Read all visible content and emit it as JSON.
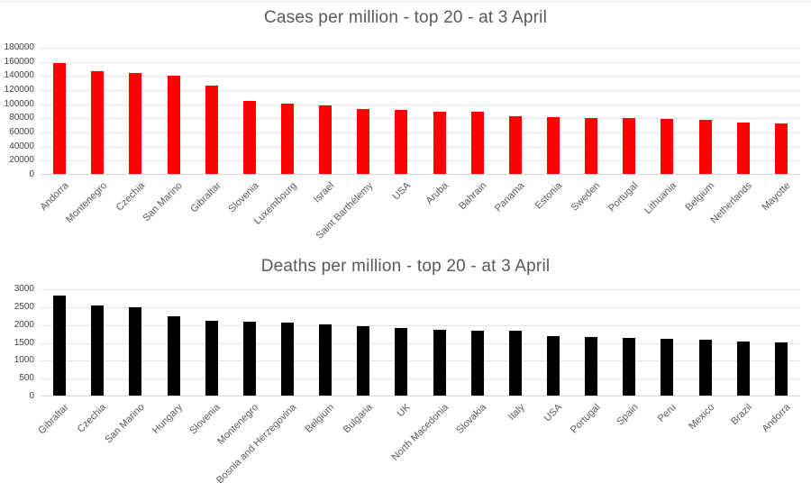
{
  "colors": {
    "cases_bar": "#ff0000",
    "deaths_bar": "#000000",
    "title_text": "#595959",
    "axis_text": "#404040",
    "gridline": "#e4e4e4"
  },
  "chart_data": [
    {
      "type": "bar",
      "title": "Cases per million - top 20 - at 3 April",
      "categories": [
        "Andorra",
        "Montenegro",
        "Czechia",
        "San Marino",
        "Gibraltar",
        "Slovenia",
        "Luxembourg",
        "Israel",
        "Saint Barthélemy",
        "USA",
        "Aruba",
        "Bahrain",
        "Panama",
        "Estonia",
        "Sweden",
        "Portugal",
        "Lithuania",
        "Belgium",
        "Netherlands",
        "Mayotte"
      ],
      "values": [
        156500,
        145500,
        143000,
        139000,
        125500,
        104000,
        99500,
        97300,
        91700,
        90400,
        88400,
        88200,
        82000,
        80700,
        79000,
        78800,
        78500,
        77000,
        73400,
        71600
      ],
      "bar_color": "#ff0000",
      "xlabel": "",
      "ylabel": "",
      "ylim": [
        0,
        180000
      ],
      "ytick_step": 20000,
      "yticks": [
        0,
        20000,
        40000,
        60000,
        80000,
        100000,
        120000,
        140000,
        160000,
        180000
      ],
      "grid": true,
      "legend": false
    },
    {
      "type": "bar",
      "title": "Deaths per million - top 20 - at 3 April",
      "categories": [
        "Gibraltar",
        "Czechia",
        "San Marino",
        "Hungary",
        "Slovenia",
        "Montenegro",
        "Bosnia and Herzegovina",
        "Belgium",
        "Bulgaria",
        "UK",
        "North Macedonia",
        "Slovakia",
        "Italy",
        "USA",
        "Portugal",
        "Spain",
        "Peru",
        "Mexico",
        "Brazil",
        "Andorra"
      ],
      "values": [
        2790,
        2510,
        2465,
        2210,
        2090,
        2070,
        2050,
        1985,
        1940,
        1880,
        1840,
        1822,
        1820,
        1655,
        1640,
        1602,
        1595,
        1575,
        1510,
        1485
      ],
      "bar_color": "#000000",
      "xlabel": "",
      "ylabel": "",
      "ylim": [
        0,
        3000
      ],
      "ytick_step": 500,
      "yticks": [
        0,
        500,
        1000,
        1500,
        2000,
        2500,
        3000
      ],
      "grid": true,
      "legend": false
    }
  ]
}
